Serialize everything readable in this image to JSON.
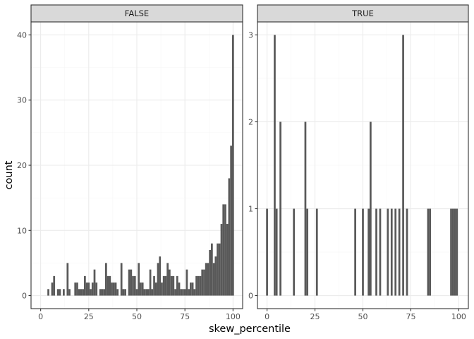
{
  "colors": {
    "bar": "#595959",
    "strip_fill": "#d9d9d9",
    "panel_border": "#333333",
    "grid_major": "#ebebeb",
    "grid_minor": "#f5f5f5",
    "tick_text": "#4d4d4d"
  },
  "chart_data": {
    "type": "bar",
    "xlabel": "skew_percentile",
    "ylabel": "count",
    "facet_var_values": [
      "FALSE",
      "TRUE"
    ],
    "scales": "free_y",
    "bin_width": 1,
    "xlim": [
      -5,
      105
    ],
    "x_ticks": [
      0,
      25,
      50,
      75,
      100
    ],
    "grid": true,
    "panels": [
      {
        "strip_label": "FALSE",
        "ylim": [
          -2,
          42
        ],
        "y_ticks": [
          0,
          10,
          20,
          30,
          40
        ],
        "bins": [
          {
            "x": 4,
            "count": 1
          },
          {
            "x": 6,
            "count": 2
          },
          {
            "x": 7,
            "count": 3
          },
          {
            "x": 9,
            "count": 1
          },
          {
            "x": 10,
            "count": 1
          },
          {
            "x": 12,
            "count": 1
          },
          {
            "x": 14,
            "count": 5
          },
          {
            "x": 15,
            "count": 1
          },
          {
            "x": 18,
            "count": 2
          },
          {
            "x": 19,
            "count": 2
          },
          {
            "x": 20,
            "count": 1
          },
          {
            "x": 21,
            "count": 1
          },
          {
            "x": 22,
            "count": 1
          },
          {
            "x": 23,
            "count": 3
          },
          {
            "x": 24,
            "count": 2
          },
          {
            "x": 25,
            "count": 2
          },
          {
            "x": 26,
            "count": 1
          },
          {
            "x": 27,
            "count": 2
          },
          {
            "x": 28,
            "count": 4
          },
          {
            "x": 29,
            "count": 2
          },
          {
            "x": 31,
            "count": 1
          },
          {
            "x": 32,
            "count": 1
          },
          {
            "x": 33,
            "count": 1
          },
          {
            "x": 34,
            "count": 5
          },
          {
            "x": 35,
            "count": 3
          },
          {
            "x": 36,
            "count": 3
          },
          {
            "x": 37,
            "count": 2
          },
          {
            "x": 38,
            "count": 2
          },
          {
            "x": 39,
            "count": 2
          },
          {
            "x": 40,
            "count": 1
          },
          {
            "x": 42,
            "count": 5
          },
          {
            "x": 43,
            "count": 1
          },
          {
            "x": 44,
            "count": 1
          },
          {
            "x": 46,
            "count": 4
          },
          {
            "x": 47,
            "count": 4
          },
          {
            "x": 48,
            "count": 3
          },
          {
            "x": 49,
            "count": 3
          },
          {
            "x": 50,
            "count": 1
          },
          {
            "x": 51,
            "count": 5
          },
          {
            "x": 52,
            "count": 2
          },
          {
            "x": 53,
            "count": 2
          },
          {
            "x": 54,
            "count": 1
          },
          {
            "x": 55,
            "count": 1
          },
          {
            "x": 56,
            "count": 1
          },
          {
            "x": 57,
            "count": 4
          },
          {
            "x": 58,
            "count": 1
          },
          {
            "x": 59,
            "count": 3
          },
          {
            "x": 60,
            "count": 2
          },
          {
            "x": 61,
            "count": 5
          },
          {
            "x": 62,
            "count": 6
          },
          {
            "x": 63,
            "count": 2
          },
          {
            "x": 64,
            "count": 3
          },
          {
            "x": 65,
            "count": 3
          },
          {
            "x": 66,
            "count": 5
          },
          {
            "x": 67,
            "count": 4
          },
          {
            "x": 68,
            "count": 3
          },
          {
            "x": 69,
            "count": 3
          },
          {
            "x": 70,
            "count": 1
          },
          {
            "x": 71,
            "count": 3
          },
          {
            "x": 72,
            "count": 2
          },
          {
            "x": 73,
            "count": 1
          },
          {
            "x": 74,
            "count": 1
          },
          {
            "x": 75,
            "count": 1
          },
          {
            "x": 76,
            "count": 4
          },
          {
            "x": 77,
            "count": 1
          },
          {
            "x": 78,
            "count": 2
          },
          {
            "x": 79,
            "count": 2
          },
          {
            "x": 80,
            "count": 1
          },
          {
            "x": 81,
            "count": 3
          },
          {
            "x": 82,
            "count": 3
          },
          {
            "x": 83,
            "count": 3
          },
          {
            "x": 84,
            "count": 4
          },
          {
            "x": 85,
            "count": 4
          },
          {
            "x": 86,
            "count": 5
          },
          {
            "x": 87,
            "count": 5
          },
          {
            "x": 88,
            "count": 7
          },
          {
            "x": 89,
            "count": 8
          },
          {
            "x": 90,
            "count": 5
          },
          {
            "x": 91,
            "count": 6
          },
          {
            "x": 92,
            "count": 8
          },
          {
            "x": 93,
            "count": 8
          },
          {
            "x": 94,
            "count": 11
          },
          {
            "x": 95,
            "count": 14
          },
          {
            "x": 96,
            "count": 14
          },
          {
            "x": 97,
            "count": 11
          },
          {
            "x": 98,
            "count": 18
          },
          {
            "x": 99,
            "count": 23
          },
          {
            "x": 100,
            "count": 40
          }
        ]
      },
      {
        "strip_label": "TRUE",
        "ylim": [
          -0.15,
          3.15
        ],
        "y_ticks": [
          0,
          1,
          2,
          3
        ],
        "bins": [
          {
            "x": 0,
            "count": 1
          },
          {
            "x": 4,
            "count": 3
          },
          {
            "x": 5,
            "count": 1
          },
          {
            "x": 7,
            "count": 2
          },
          {
            "x": 14,
            "count": 1
          },
          {
            "x": 20,
            "count": 2
          },
          {
            "x": 21,
            "count": 1
          },
          {
            "x": 26,
            "count": 1
          },
          {
            "x": 46,
            "count": 1
          },
          {
            "x": 50,
            "count": 1
          },
          {
            "x": 53,
            "count": 1
          },
          {
            "x": 54,
            "count": 2
          },
          {
            "x": 57,
            "count": 1
          },
          {
            "x": 59,
            "count": 1
          },
          {
            "x": 63,
            "count": 1
          },
          {
            "x": 65,
            "count": 1
          },
          {
            "x": 67,
            "count": 1
          },
          {
            "x": 69,
            "count": 1
          },
          {
            "x": 71,
            "count": 3
          },
          {
            "x": 73,
            "count": 1
          },
          {
            "x": 84,
            "count": 1
          },
          {
            "x": 85,
            "count": 1
          },
          {
            "x": 96,
            "count": 1
          },
          {
            "x": 97,
            "count": 1
          },
          {
            "x": 98,
            "count": 1
          },
          {
            "x": 99,
            "count": 1
          }
        ]
      }
    ]
  }
}
